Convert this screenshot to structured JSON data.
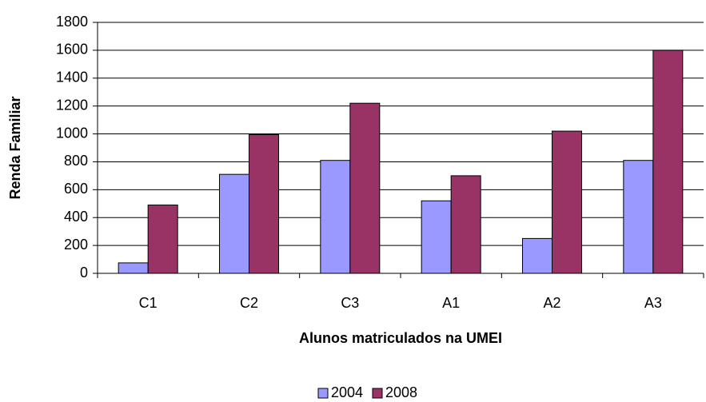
{
  "chart_data": {
    "type": "bar",
    "x_label": "Alunos matriculados na UMEI",
    "y_label": "Renda Familiar",
    "categories": [
      "C1",
      "C2",
      "C3",
      "A1",
      "A2",
      "A3"
    ],
    "series": [
      {
        "name": "2004",
        "color": "#9999ff",
        "values": [
          75,
          710,
          810,
          520,
          250,
          810
        ]
      },
      {
        "name": "2008",
        "color": "#993366",
        "values": [
          490,
          995,
          1220,
          700,
          1020,
          1600
        ]
      }
    ],
    "ylim": [
      0,
      1800
    ],
    "yticks": [
      0,
      200,
      400,
      600,
      800,
      1000,
      1200,
      1400,
      1600,
      1800
    ],
    "grid": true,
    "legend": "bottom"
  }
}
